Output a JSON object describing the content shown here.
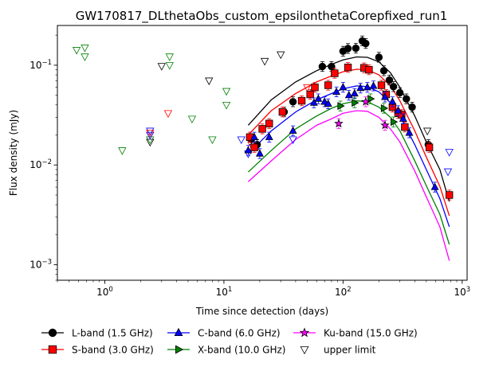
{
  "chart_data": {
    "type": "scatter",
    "title": "GW170817_DLthetaObs_custom_epsilonthetaCorepfixed_run1",
    "xlabel": "Time since detection (days)",
    "ylabel": "Flux density (mJy)",
    "xscale": "log",
    "yscale": "log",
    "xlim": [
      0.4,
      1100
    ],
    "ylim": [
      0.0007,
      0.25
    ],
    "xticks": [
      {
        "value": 1,
        "base": "10",
        "exp": "0"
      },
      {
        "value": 10,
        "base": "10",
        "exp": "1"
      },
      {
        "value": 100,
        "base": "10",
        "exp": "2"
      },
      {
        "value": 1000,
        "base": "10",
        "exp": "3"
      }
    ],
    "yticks": [
      {
        "value": 0.001,
        "base": "10",
        "exp": "−3"
      },
      {
        "value": 0.01,
        "base": "10",
        "exp": "−2"
      },
      {
        "value": 0.1,
        "base": "10",
        "exp": "−1"
      }
    ],
    "legend_position": "below-plot",
    "legend": [
      {
        "label": "L-band (1.5 GHz)",
        "marker": "circle",
        "color": "#000000",
        "fill": "#000000"
      },
      {
        "label": "S-band (3.0 GHz)",
        "marker": "square",
        "color": "#ff0000",
        "fill": "#ff0000"
      },
      {
        "label": "C-band (6.0 GHz)",
        "marker": "triangle-up",
        "color": "#0000ff",
        "fill": "#0000ff"
      },
      {
        "label": "X-band (10.0 GHz)",
        "marker": "triangle-right",
        "color": "#008000",
        "fill": "#008000"
      },
      {
        "label": "Ku-band (15.0 GHz)",
        "marker": "star",
        "color": "#ff00ff",
        "fill": "#ff00ff"
      },
      {
        "label": "upper limit",
        "marker": "triangle-down-open",
        "color": "#000000",
        "fill": "none",
        "noline": true
      }
    ],
    "series": [
      {
        "band": "L",
        "color": "#000000",
        "marker": "circle",
        "model": [
          [
            16,
            0.025
          ],
          [
            25,
            0.045
          ],
          [
            40,
            0.068
          ],
          [
            60,
            0.088
          ],
          [
            80,
            0.102
          ],
          [
            100,
            0.113
          ],
          [
            130,
            0.121
          ],
          [
            160,
            0.12
          ],
          [
            200,
            0.108
          ],
          [
            250,
            0.084
          ],
          [
            300,
            0.06
          ],
          [
            400,
            0.031
          ],
          [
            500,
            0.017
          ],
          [
            650,
            0.009
          ],
          [
            780,
            0.0043
          ]
        ],
        "points": [
          [
            17,
            0.018
          ],
          [
            19,
            0.016
          ],
          [
            32,
            0.034
          ],
          [
            38,
            0.043
          ],
          [
            67,
            0.097
          ],
          [
            80,
            0.097
          ],
          [
            100,
            0.138
          ],
          [
            110,
            0.147
          ],
          [
            128,
            0.148
          ],
          [
            145,
            0.175
          ],
          [
            155,
            0.165
          ],
          [
            200,
            0.12
          ],
          [
            220,
            0.088
          ],
          [
            245,
            0.071
          ],
          [
            265,
            0.061
          ],
          [
            300,
            0.053
          ],
          [
            340,
            0.046
          ],
          [
            380,
            0.038
          ],
          [
            520,
            0.016
          ]
        ]
      },
      {
        "band": "S",
        "color": "#ff0000",
        "marker": "square",
        "model": [
          [
            16,
            0.02
          ],
          [
            25,
            0.035
          ],
          [
            40,
            0.052
          ],
          [
            60,
            0.068
          ],
          [
            80,
            0.078
          ],
          [
            100,
            0.086
          ],
          [
            130,
            0.091
          ],
          [
            160,
            0.09
          ],
          [
            200,
            0.08
          ],
          [
            250,
            0.062
          ],
          [
            300,
            0.044
          ],
          [
            400,
            0.022
          ],
          [
            500,
            0.012
          ],
          [
            650,
            0.0061
          ],
          [
            780,
            0.0031
          ]
        ],
        "points": [
          [
            16.5,
            0.019
          ],
          [
            18,
            0.015
          ],
          [
            21,
            0.023
          ],
          [
            24,
            0.026
          ],
          [
            31,
            0.034
          ],
          [
            45,
            0.044
          ],
          [
            53,
            0.051
          ],
          [
            58,
            0.06
          ],
          [
            75,
            0.063
          ],
          [
            85,
            0.083
          ],
          [
            110,
            0.095
          ],
          [
            150,
            0.094
          ],
          [
            165,
            0.09
          ],
          [
            210,
            0.063
          ],
          [
            230,
            0.051
          ],
          [
            260,
            0.038
          ],
          [
            290,
            0.033
          ],
          [
            310,
            0.032
          ],
          [
            330,
            0.024
          ],
          [
            530,
            0.015
          ],
          [
            780,
            0.005
          ]
        ]
      },
      {
        "band": "C",
        "color": "#0000ff",
        "marker": "triangle-up",
        "model": [
          [
            16,
            0.013
          ],
          [
            25,
            0.022
          ],
          [
            40,
            0.034
          ],
          [
            60,
            0.045
          ],
          [
            80,
            0.052
          ],
          [
            100,
            0.058
          ],
          [
            130,
            0.062
          ],
          [
            160,
            0.061
          ],
          [
            200,
            0.054
          ],
          [
            250,
            0.042
          ],
          [
            300,
            0.031
          ],
          [
            400,
            0.016
          ],
          [
            500,
            0.009
          ],
          [
            650,
            0.0046
          ],
          [
            780,
            0.0024
          ]
        ],
        "points": [
          [
            16,
            0.014
          ],
          [
            18,
            0.019
          ],
          [
            20,
            0.013
          ],
          [
            24,
            0.019
          ],
          [
            38,
            0.022
          ],
          [
            57,
            0.042
          ],
          [
            62,
            0.046
          ],
          [
            70,
            0.043
          ],
          [
            75,
            0.041
          ],
          [
            88,
            0.054
          ],
          [
            100,
            0.06
          ],
          [
            112,
            0.05
          ],
          [
            125,
            0.052
          ],
          [
            140,
            0.059
          ],
          [
            160,
            0.06
          ],
          [
            180,
            0.062
          ],
          [
            225,
            0.048
          ],
          [
            260,
            0.043
          ],
          [
            290,
            0.035
          ],
          [
            320,
            0.029
          ],
          [
            360,
            0.021
          ],
          [
            590,
            0.006
          ]
        ]
      },
      {
        "band": "X",
        "color": "#008000",
        "marker": "triangle-right",
        "model": [
          [
            16,
            0.0085
          ],
          [
            25,
            0.014
          ],
          [
            40,
            0.023
          ],
          [
            60,
            0.031
          ],
          [
            80,
            0.037
          ],
          [
            100,
            0.041
          ],
          [
            130,
            0.044
          ],
          [
            160,
            0.043
          ],
          [
            200,
            0.038
          ],
          [
            250,
            0.03
          ],
          [
            300,
            0.022
          ],
          [
            400,
            0.011
          ],
          [
            500,
            0.0062
          ],
          [
            650,
            0.0032
          ],
          [
            780,
            0.0016
          ]
        ],
        "points": [
          [
            95,
            0.039
          ],
          [
            125,
            0.042
          ],
          [
            170,
            0.046
          ],
          [
            220,
            0.037
          ],
          [
            265,
            0.027
          ]
        ]
      },
      {
        "band": "Ku",
        "color": "#ff00ff",
        "marker": "star",
        "model": [
          [
            16,
            0.0068
          ],
          [
            25,
            0.011
          ],
          [
            40,
            0.018
          ],
          [
            60,
            0.025
          ],
          [
            80,
            0.029
          ],
          [
            100,
            0.033
          ],
          [
            130,
            0.035
          ],
          [
            160,
            0.0345
          ],
          [
            200,
            0.03
          ],
          [
            250,
            0.023
          ],
          [
            300,
            0.017
          ],
          [
            400,
            0.0087
          ],
          [
            500,
            0.0048
          ],
          [
            650,
            0.0024
          ],
          [
            780,
            0.0011
          ]
        ],
        "points": [
          [
            92,
            0.026
          ],
          [
            155,
            0.043
          ],
          [
            225,
            0.025
          ]
        ]
      }
    ],
    "upper_limits": [
      {
        "band": "X",
        "color": "#008000",
        "points": [
          [
            0.58,
            0.142
          ],
          [
            0.68,
            0.15
          ],
          [
            0.68,
            0.122
          ],
          [
            1.4,
            0.014
          ],
          [
            2.4,
            0.018
          ],
          [
            3.5,
            0.1
          ],
          [
            3.5,
            0.122
          ],
          [
            5.4,
            0.029
          ],
          [
            8,
            0.018
          ],
          [
            10.5,
            0.055
          ],
          [
            10.5,
            0.04
          ]
        ]
      },
      {
        "band": "C",
        "color": "#0000ff",
        "points": [
          [
            2.4,
            0.022
          ],
          [
            2.4,
            0.02
          ],
          [
            14,
            0.018
          ],
          [
            16,
            0.013
          ],
          [
            38,
            0.018
          ],
          [
            780,
            0.0135
          ],
          [
            760,
            0.0086
          ]
        ]
      },
      {
        "band": "S",
        "color": "#ff0000",
        "points": [
          [
            2.4,
            0.021
          ],
          [
            3.4,
            0.033
          ],
          [
            17,
            0.016
          ],
          [
            50,
            0.06
          ]
        ]
      },
      {
        "band": "L",
        "color": "#000000",
        "points": [
          [
            2.4,
            0.017
          ],
          [
            3,
            0.098
          ],
          [
            7.5,
            0.07
          ],
          [
            22,
            0.11
          ],
          [
            30,
            0.128
          ],
          [
            510,
            0.022
          ]
        ]
      }
    ]
  }
}
